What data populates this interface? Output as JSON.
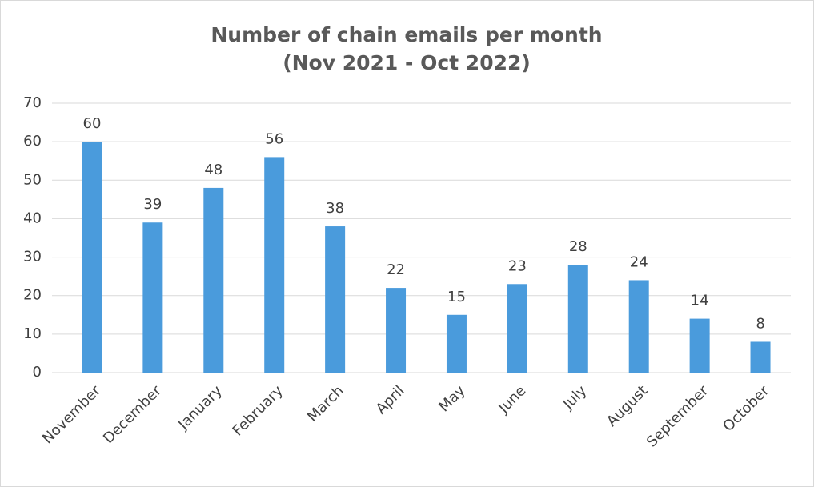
{
  "chart_data": {
    "type": "bar",
    "title": [
      "Number of chain emails per month",
      "(Nov 2021 - Oct 2022)"
    ],
    "categories": [
      "November",
      "December",
      "January",
      "February",
      "March",
      "April",
      "May",
      "June",
      "July",
      "August",
      "September",
      "October"
    ],
    "values": [
      60,
      39,
      48,
      56,
      38,
      22,
      15,
      23,
      28,
      24,
      14,
      8
    ],
    "color": "#4a9bdc",
    "ylim": [
      0,
      70
    ],
    "yticks": [
      0,
      10,
      20,
      30,
      40,
      50,
      60,
      70
    ],
    "grid": true
  }
}
